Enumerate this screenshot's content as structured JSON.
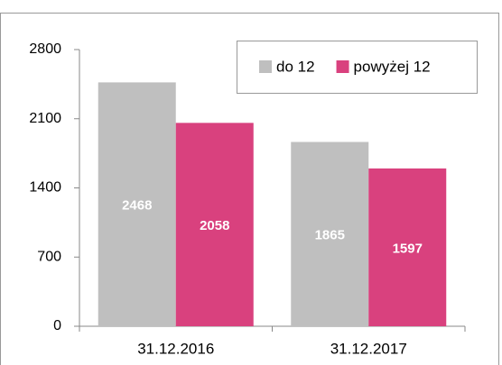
{
  "chart_data": {
    "type": "bar",
    "categories": [
      "31.12.2016",
      "31.12.2017"
    ],
    "series": [
      {
        "name": "do 12",
        "color": "#bfbfbf",
        "values": [
          2468,
          1865
        ]
      },
      {
        "name": "powyżej 12",
        "color": "#d9417e",
        "values": [
          2058,
          1597
        ]
      }
    ],
    "ylim": [
      0,
      2800
    ],
    "yticks": [
      0,
      700,
      1400,
      2100,
      2800
    ],
    "grid": false,
    "legend": "top-right"
  }
}
